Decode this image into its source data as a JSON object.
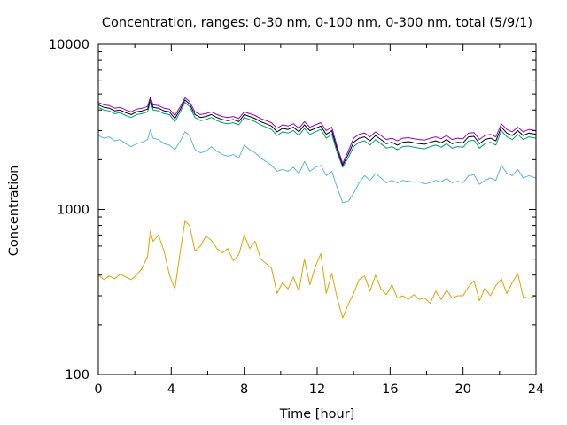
{
  "chart_data": {
    "type": "line",
    "title": "Concentration, ranges: 0-30 nm, 0-100 nm, 0-300 nm, total (5/9/1)",
    "xlabel": "Time [hour]",
    "ylabel": "Concentration",
    "xlim": [
      0,
      24
    ],
    "ylim": [
      100,
      10000
    ],
    "yscale": "log",
    "legend": "none",
    "grid": false,
    "xticks": [
      "0",
      "4",
      "8",
      "12",
      "16",
      "20",
      "24"
    ],
    "yticks": [
      "100",
      "1000",
      "10000"
    ],
    "series": [
      {
        "color": "#e69f00",
        "x": [
          0,
          0.3,
          0.6,
          0.9,
          1.2,
          1.5,
          1.8,
          2.1,
          2.4,
          2.7,
          2.85,
          3.0,
          3.3,
          3.6,
          3.9,
          4.2,
          4.5,
          4.75,
          5.0,
          5.3,
          5.6,
          5.9,
          6.2,
          6.5,
          6.8,
          7.1,
          7.4,
          7.7,
          8.0,
          8.3,
          8.6,
          8.9,
          9.2,
          9.5,
          9.8,
          10.1,
          10.4,
          10.7,
          11.0,
          11.3,
          11.6,
          11.9,
          12.2,
          12.5,
          12.8,
          13.1,
          13.4,
          13.7,
          14.0,
          14.3,
          14.6,
          14.9,
          15.2,
          15.5,
          15.8,
          16.1,
          16.4,
          16.7,
          17.0,
          17.3,
          17.6,
          17.9,
          18.2,
          18.5,
          18.8,
          19.1,
          19.4,
          19.7,
          20.0,
          20.3,
          20.6,
          20.9,
          21.2,
          21.5,
          21.8,
          22.1,
          22.4,
          22.7,
          23.0,
          23.3,
          23.6,
          24.0
        ],
        "y": [
          400,
          375,
          395,
          380,
          405,
          390,
          375,
          400,
          440,
          520,
          740,
          640,
          700,
          560,
          400,
          330,
          560,
          850,
          800,
          560,
          600,
          690,
          650,
          580,
          545,
          580,
          490,
          530,
          700,
          580,
          640,
          500,
          470,
          440,
          310,
          360,
          330,
          390,
          320,
          500,
          350,
          450,
          540,
          310,
          410,
          290,
          220,
          265,
          310,
          375,
          395,
          320,
          400,
          330,
          305,
          350,
          290,
          300,
          285,
          305,
          285,
          290,
          270,
          320,
          285,
          325,
          290,
          300,
          300,
          340,
          370,
          280,
          335,
          300,
          345,
          380,
          310,
          360,
          410,
          295,
          290,
          300
        ]
      },
      {
        "color": "#56b4e9",
        "x": [
          0,
          0.3,
          0.6,
          0.9,
          1.2,
          1.5,
          1.8,
          2.1,
          2.4,
          2.7,
          2.85,
          3.0,
          3.3,
          3.6,
          3.9,
          4.2,
          4.5,
          4.75,
          5.0,
          5.3,
          5.6,
          5.9,
          6.2,
          6.5,
          6.8,
          7.1,
          7.4,
          7.7,
          8.0,
          8.3,
          8.6,
          8.9,
          9.2,
          9.5,
          9.8,
          10.1,
          10.4,
          10.7,
          11.0,
          11.3,
          11.6,
          11.9,
          12.2,
          12.5,
          12.8,
          13.1,
          13.4,
          13.7,
          14.0,
          14.3,
          14.6,
          14.9,
          15.2,
          15.5,
          15.8,
          16.1,
          16.4,
          16.7,
          17.0,
          17.3,
          17.6,
          17.9,
          18.2,
          18.5,
          18.8,
          19.1,
          19.4,
          19.7,
          20.0,
          20.3,
          20.6,
          20.9,
          21.2,
          21.5,
          21.8,
          22.1,
          22.4,
          22.7,
          23.0,
          23.3,
          23.6,
          24.0
        ],
        "y": [
          2800,
          2700,
          2750,
          2600,
          2650,
          2500,
          2400,
          2500,
          2550,
          2650,
          3050,
          2700,
          2650,
          2500,
          2450,
          2300,
          2600,
          2950,
          2800,
          2300,
          2200,
          2250,
          2400,
          2250,
          2150,
          2100,
          2150,
          2050,
          2450,
          2300,
          2200,
          2050,
          1950,
          1850,
          1700,
          1750,
          1700,
          1800,
          1650,
          1950,
          1700,
          1800,
          1850,
          1600,
          1700,
          1350,
          1100,
          1120,
          1250,
          1450,
          1600,
          1500,
          1650,
          1550,
          1450,
          1500,
          1450,
          1500,
          1480,
          1460,
          1470,
          1430,
          1450,
          1500,
          1470,
          1540,
          1450,
          1480,
          1450,
          1600,
          1620,
          1420,
          1500,
          1550,
          1500,
          1850,
          1650,
          1600,
          1750,
          1550,
          1600,
          1550
        ]
      },
      {
        "color": "#009e73",
        "x": [
          0,
          0.3,
          0.6,
          0.9,
          1.2,
          1.5,
          1.8,
          2.1,
          2.4,
          2.7,
          2.85,
          3.0,
          3.3,
          3.6,
          3.9,
          4.2,
          4.5,
          4.75,
          5.0,
          5.3,
          5.6,
          5.9,
          6.2,
          6.5,
          6.8,
          7.1,
          7.4,
          7.7,
          8.0,
          8.3,
          8.6,
          8.9,
          9.2,
          9.5,
          9.8,
          10.1,
          10.4,
          10.7,
          11.0,
          11.3,
          11.6,
          11.9,
          12.2,
          12.5,
          12.8,
          13.1,
          13.4,
          13.7,
          14.0,
          14.3,
          14.6,
          14.9,
          15.2,
          15.5,
          15.8,
          16.1,
          16.4,
          16.7,
          17.0,
          17.3,
          17.6,
          17.9,
          18.2,
          18.5,
          18.8,
          19.1,
          19.4,
          19.7,
          20.0,
          20.3,
          20.6,
          20.9,
          21.2,
          21.5,
          21.8,
          22.1,
          22.4,
          22.7,
          23.0,
          23.3,
          23.6,
          24.0
        ],
        "y": [
          4150,
          4000,
          3950,
          3800,
          3850,
          3700,
          3600,
          3750,
          3800,
          3900,
          4500,
          4000,
          3950,
          3800,
          3750,
          3400,
          3900,
          4450,
          4200,
          3600,
          3450,
          3500,
          3600,
          3450,
          3350,
          3300,
          3350,
          3250,
          3600,
          3500,
          3400,
          3250,
          3150,
          3050,
          2800,
          2950,
          2900,
          3000,
          2800,
          3100,
          2850,
          2950,
          3050,
          2700,
          2850,
          2200,
          1800,
          2050,
          2400,
          2550,
          2600,
          2450,
          2650,
          2500,
          2350,
          2400,
          2300,
          2400,
          2420,
          2380,
          2350,
          2330,
          2400,
          2450,
          2380,
          2500,
          2350,
          2400,
          2380,
          2600,
          2620,
          2350,
          2500,
          2550,
          2450,
          3000,
          2750,
          2650,
          2850,
          2650,
          2750,
          2700
        ]
      },
      {
        "color": "#000000",
        "x": [
          0,
          0.3,
          0.6,
          0.9,
          1.2,
          1.5,
          1.8,
          2.1,
          2.4,
          2.7,
          2.85,
          3.0,
          3.3,
          3.6,
          3.9,
          4.2,
          4.5,
          4.75,
          5.0,
          5.3,
          5.6,
          5.9,
          6.2,
          6.5,
          6.8,
          7.1,
          7.4,
          7.7,
          8.0,
          8.3,
          8.6,
          8.9,
          9.2,
          9.5,
          9.8,
          10.1,
          10.4,
          10.7,
          11.0,
          11.3,
          11.6,
          11.9,
          12.2,
          12.5,
          12.8,
          13.1,
          13.4,
          13.7,
          14.0,
          14.3,
          14.6,
          14.9,
          15.2,
          15.5,
          15.8,
          16.1,
          16.4,
          16.7,
          17.0,
          17.3,
          17.6,
          17.9,
          18.2,
          18.5,
          18.8,
          19.1,
          19.4,
          19.7,
          20.0,
          20.3,
          20.6,
          20.9,
          21.2,
          21.5,
          21.8,
          22.1,
          22.4,
          22.7,
          23.0,
          23.3,
          23.6,
          24.0
        ],
        "y": [
          4300,
          4150,
          4100,
          3950,
          4000,
          3850,
          3750,
          3900,
          3950,
          4050,
          4650,
          4150,
          4100,
          3950,
          3900,
          3550,
          4050,
          4600,
          4350,
          3750,
          3600,
          3650,
          3750,
          3600,
          3500,
          3450,
          3500,
          3400,
          3750,
          3650,
          3550,
          3400,
          3300,
          3200,
          2950,
          3100,
          3050,
          3150,
          2950,
          3250,
          3000,
          3100,
          3200,
          2850,
          3000,
          2300,
          1850,
          2150,
          2550,
          2700,
          2750,
          2600,
          2800,
          2650,
          2500,
          2550,
          2450,
          2550,
          2570,
          2530,
          2500,
          2480,
          2550,
          2600,
          2530,
          2650,
          2500,
          2550,
          2530,
          2750,
          2770,
          2500,
          2650,
          2700,
          2600,
          3150,
          2900,
          2800,
          3000,
          2800,
          2900,
          2850
        ]
      },
      {
        "color": "#9400d3",
        "x": [
          0,
          0.3,
          0.6,
          0.9,
          1.2,
          1.5,
          1.8,
          2.1,
          2.4,
          2.7,
          2.85,
          3.0,
          3.3,
          3.6,
          3.9,
          4.2,
          4.5,
          4.75,
          5.0,
          5.3,
          5.6,
          5.9,
          6.2,
          6.5,
          6.8,
          7.1,
          7.4,
          7.7,
          8.0,
          8.3,
          8.6,
          8.9,
          9.2,
          9.5,
          9.8,
          10.1,
          10.4,
          10.7,
          11.0,
          11.3,
          11.6,
          11.9,
          12.2,
          12.5,
          12.8,
          13.1,
          13.4,
          13.7,
          14.0,
          14.3,
          14.6,
          14.9,
          15.2,
          15.5,
          15.8,
          16.1,
          16.4,
          16.7,
          17.0,
          17.3,
          17.6,
          17.9,
          18.2,
          18.5,
          18.8,
          19.1,
          19.4,
          19.7,
          20.0,
          20.3,
          20.6,
          20.9,
          21.2,
          21.5,
          21.8,
          22.1,
          22.4,
          22.7,
          23.0,
          23.3,
          23.6,
          24.0
        ],
        "y": [
          4450,
          4300,
          4250,
          4100,
          4150,
          4000,
          3900,
          4050,
          4100,
          4200,
          4800,
          4300,
          4250,
          4100,
          4050,
          3700,
          4200,
          4750,
          4500,
          3900,
          3750,
          3800,
          3900,
          3750,
          3650,
          3600,
          3650,
          3550,
          3900,
          3800,
          3700,
          3550,
          3450,
          3350,
          3100,
          3250,
          3200,
          3300,
          3100,
          3400,
          3150,
          3250,
          3350,
          3000,
          3150,
          2400,
          1900,
          2250,
          2700,
          2850,
          2900,
          2750,
          2950,
          2800,
          2650,
          2700,
          2600,
          2700,
          2720,
          2680,
          2650,
          2630,
          2700,
          2750,
          2680,
          2800,
          2650,
          2700,
          2680,
          2900,
          2920,
          2650,
          2800,
          2850,
          2750,
          3300,
          3050,
          2950,
          3150,
          2950,
          3050,
          3000
        ]
      }
    ]
  }
}
